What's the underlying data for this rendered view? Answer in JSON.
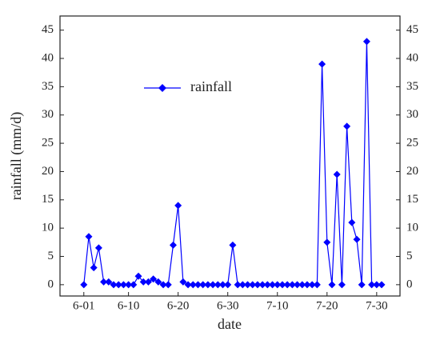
{
  "chart_data": {
    "type": "line",
    "x_label": "date",
    "y_label": "rainfall (mm/d)",
    "x": [
      1,
      2,
      3,
      4,
      5,
      6,
      7,
      8,
      9,
      10,
      11,
      12,
      13,
      14,
      15,
      16,
      17,
      18,
      19,
      20,
      21,
      22,
      23,
      24,
      25,
      26,
      27,
      28,
      29,
      30,
      31,
      32,
      33,
      34,
      35,
      36,
      37,
      38,
      39,
      40,
      41,
      42,
      43,
      44,
      45,
      46,
      47,
      48,
      49,
      50,
      51,
      52,
      53,
      54,
      55,
      56,
      57,
      58,
      59,
      60,
      61
    ],
    "series": [
      {
        "name": "rainfall",
        "color": "#0000ff",
        "values": [
          0,
          8.5,
          3,
          6.5,
          0.5,
          0.5,
          0,
          0,
          0,
          0,
          0,
          1.5,
          0.5,
          0.5,
          1,
          0.5,
          0,
          0,
          7,
          14,
          0.5,
          0,
          0,
          0,
          0,
          0,
          0,
          0,
          0,
          0,
          7,
          0,
          0,
          0,
          0,
          0,
          0,
          0,
          0,
          0,
          0,
          0,
          0,
          0,
          0,
          0,
          0,
          0,
          39,
          7.5,
          0,
          19.5,
          0,
          28,
          11,
          8,
          0,
          43,
          0,
          0,
          0
        ]
      }
    ],
    "xlim": [
      -3.8,
      64.7
    ],
    "xticks": [
      {
        "value": 1,
        "label": "6-01"
      },
      {
        "value": 10,
        "label": "6-10"
      },
      {
        "value": 20,
        "label": "6-20"
      },
      {
        "value": 30,
        "label": "6-30"
      },
      {
        "value": 40,
        "label": "7-10"
      },
      {
        "value": 50,
        "label": "7-20"
      },
      {
        "value": 60,
        "label": "7-30"
      }
    ],
    "ylim": [
      -2,
      47.5
    ],
    "yticks": [
      0,
      5,
      10,
      15,
      20,
      25,
      30,
      35,
      40,
      45
    ],
    "grid": false,
    "legend": "upper left"
  }
}
